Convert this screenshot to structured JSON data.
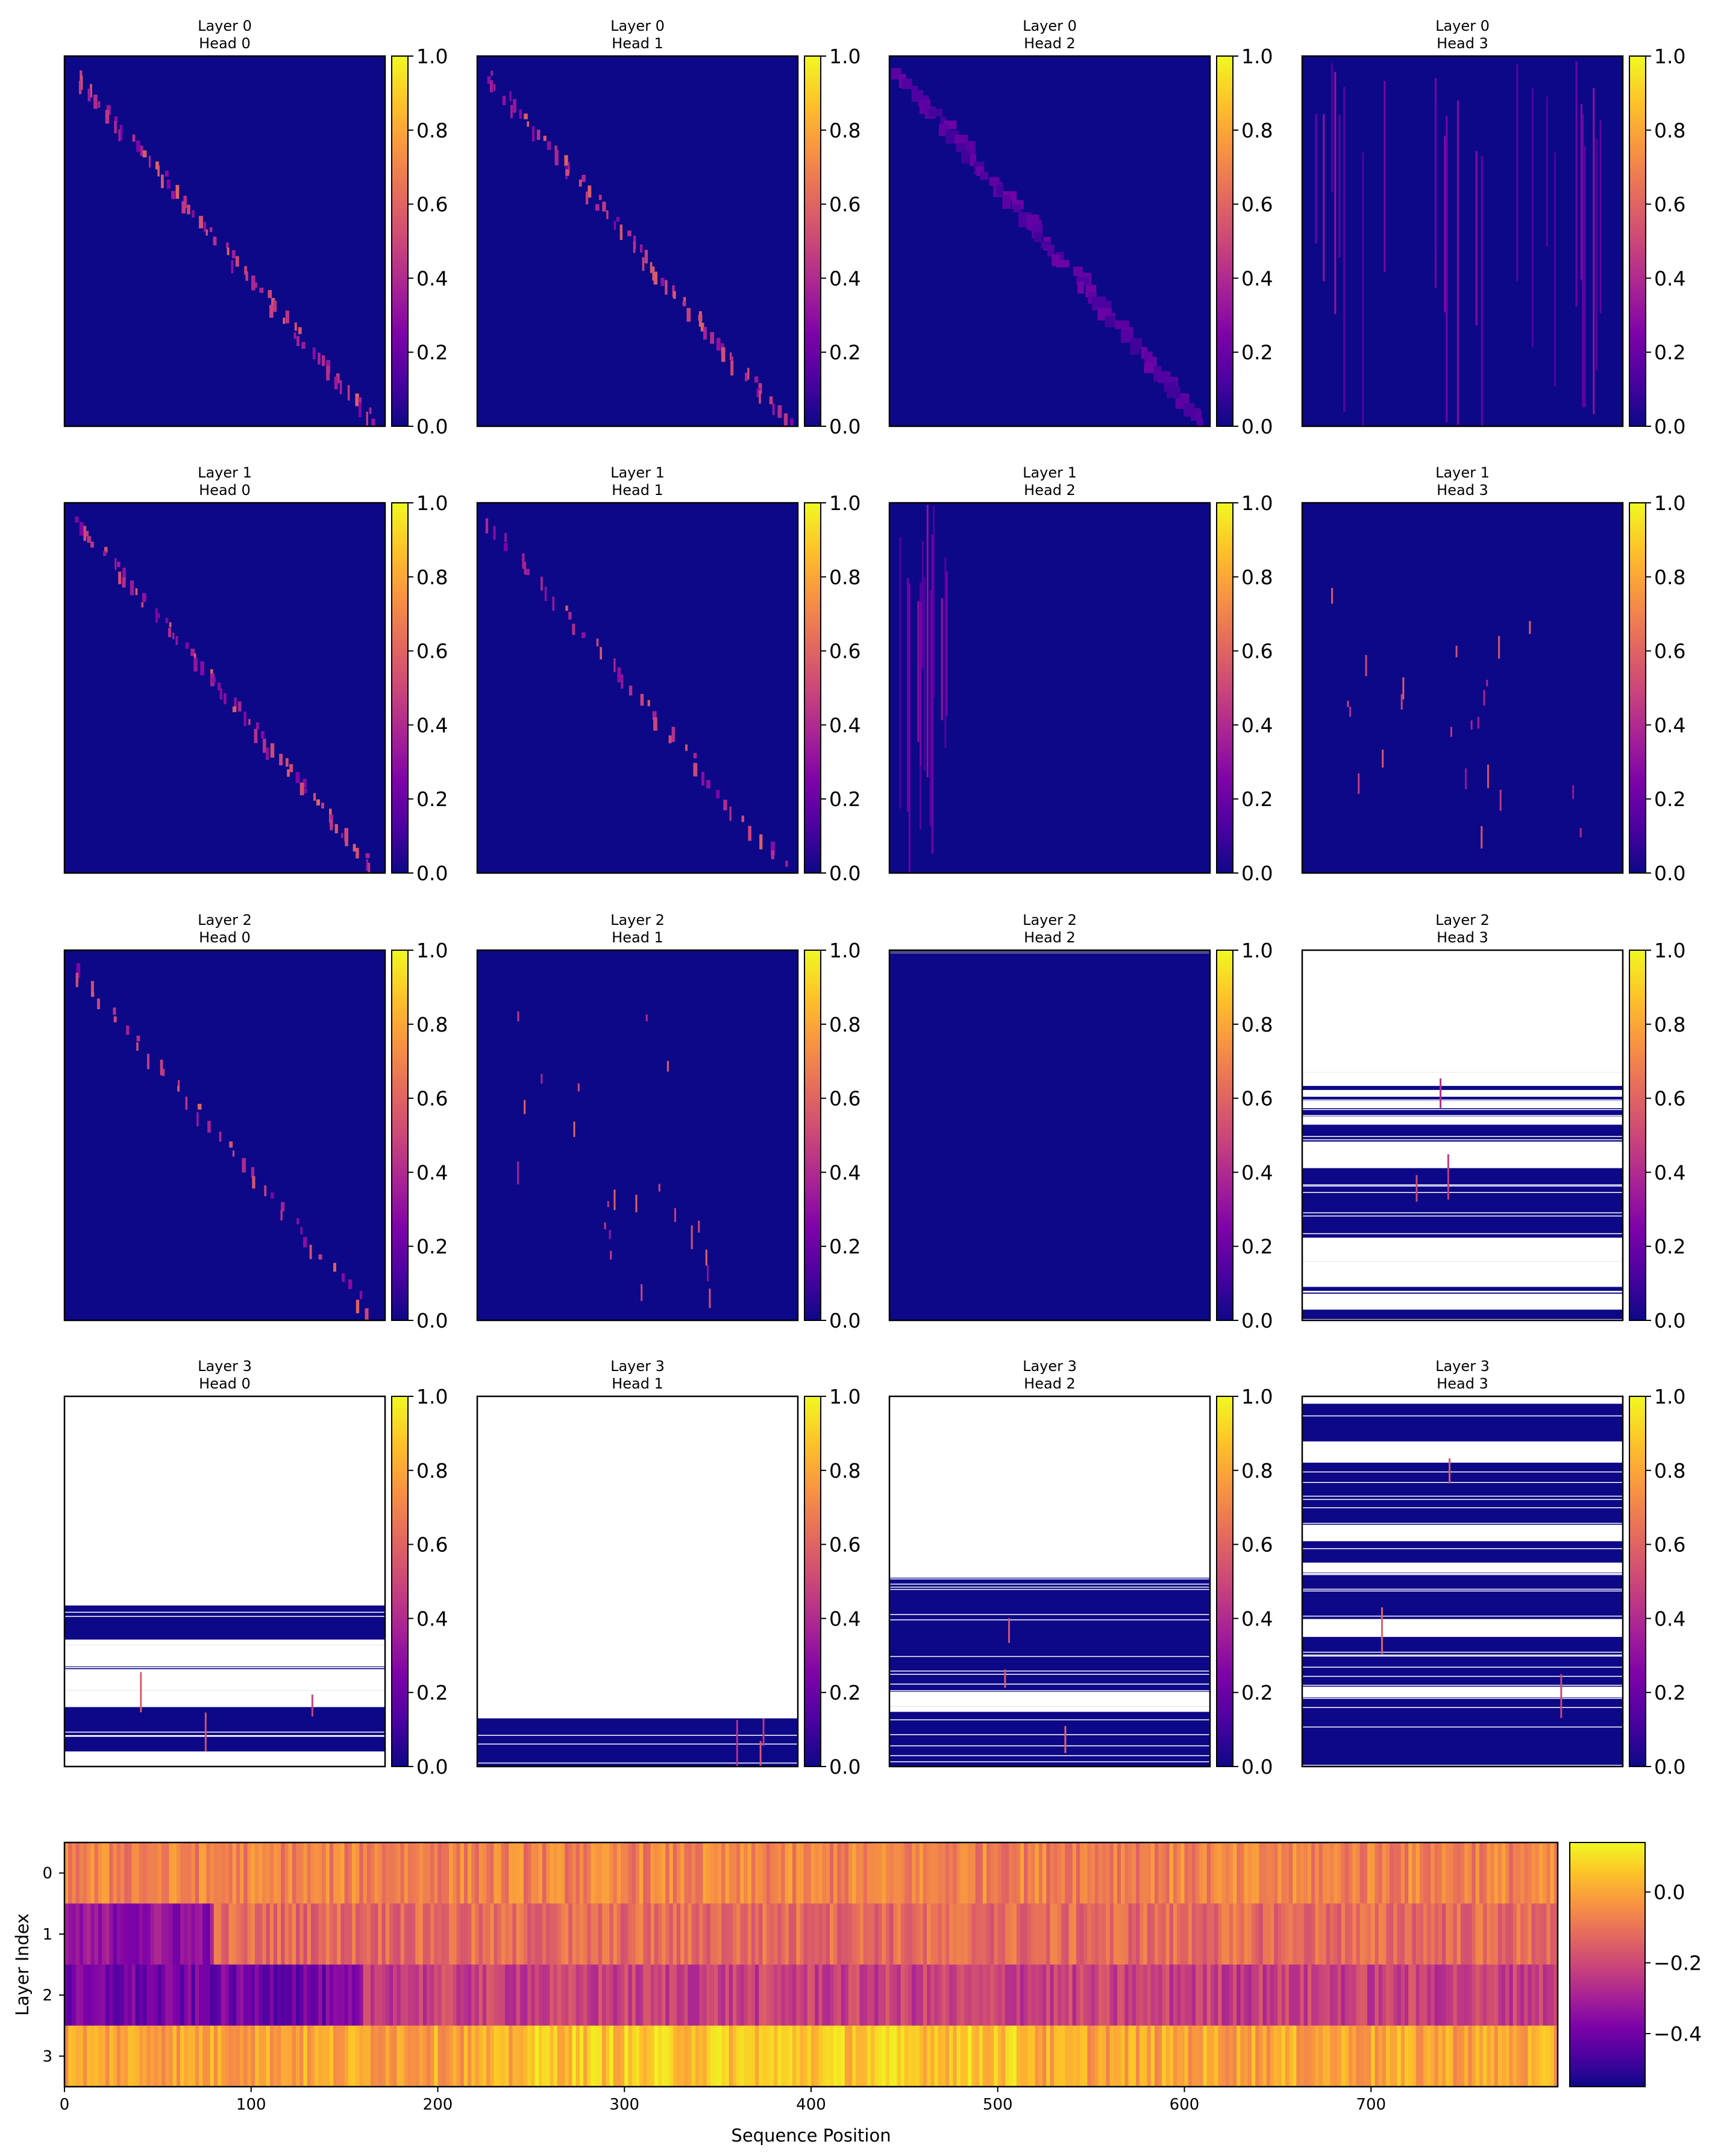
{
  "chart_data": [
    {
      "type": "heatmap",
      "colormap": "plasma",
      "colorbar": {
        "ticks": [
          "0.0",
          "0.2",
          "0.4",
          "0.6",
          "0.8",
          "1.0"
        ],
        "range": [
          0,
          1
        ]
      },
      "panels": [
        {
          "title": [
            "Layer 0",
            "Head 0"
          ],
          "pattern": "diagonal"
        },
        {
          "title": [
            "Layer 0",
            "Head 1"
          ],
          "pattern": "diagonal"
        },
        {
          "title": [
            "Layer 0",
            "Head 2"
          ],
          "pattern": "diagonal-diffuse"
        },
        {
          "title": [
            "Layer 0",
            "Head 3"
          ],
          "pattern": "vertical-stripes"
        },
        {
          "title": [
            "Layer 1",
            "Head 0"
          ],
          "pattern": "diagonal"
        },
        {
          "title": [
            "Layer 1",
            "Head 1"
          ],
          "pattern": "diagonal-sparse"
        },
        {
          "title": [
            "Layer 1",
            "Head 2"
          ],
          "pattern": "left-columns"
        },
        {
          "title": [
            "Layer 1",
            "Head 3"
          ],
          "pattern": "sparse"
        },
        {
          "title": [
            "Layer 2",
            "Head 0"
          ],
          "pattern": "diagonal-sparse"
        },
        {
          "title": [
            "Layer 2",
            "Head 1"
          ],
          "pattern": "sparse"
        },
        {
          "title": [
            "Layer 2",
            "Head 2"
          ],
          "pattern": "uniform"
        },
        {
          "title": [
            "Layer 2",
            "Head 3"
          ],
          "pattern": "nan-rows",
          "nan_fraction_top": 0.33
        },
        {
          "title": [
            "Layer 3",
            "Head 0"
          ],
          "pattern": "nan-rows",
          "nan_fraction_top": 0.5
        },
        {
          "title": [
            "Layer 3",
            "Head 1"
          ],
          "pattern": "nan-rows",
          "nan_fraction_top": 0.87
        },
        {
          "title": [
            "Layer 3",
            "Head 2"
          ],
          "pattern": "nan-rows",
          "nan_fraction_top": 0.49
        },
        {
          "title": [
            "Layer 3",
            "Head 3"
          ],
          "pattern": "nan-rows",
          "nan_fraction_top": 0.02
        }
      ]
    },
    {
      "type": "heatmap",
      "colormap": "plasma",
      "xlabel": "Sequence Position",
      "ylabel": "Layer Index",
      "xlim": [
        0,
        800
      ],
      "x_ticks": [
        "0",
        "100",
        "200",
        "300",
        "400",
        "500",
        "600",
        "700"
      ],
      "y_ticks": [
        "0",
        "1",
        "2",
        "3"
      ],
      "colorbar": {
        "ticks": [
          "0.0",
          "−0.2",
          "−0.4"
        ],
        "range": [
          -0.55,
          0.14
        ]
      },
      "rows": [
        {
          "layer": 0,
          "base": -0.07
        },
        {
          "layer": 1,
          "base": -0.12
        },
        {
          "layer": 2,
          "base": -0.22
        },
        {
          "layer": 3,
          "base": 0.0
        }
      ]
    }
  ]
}
